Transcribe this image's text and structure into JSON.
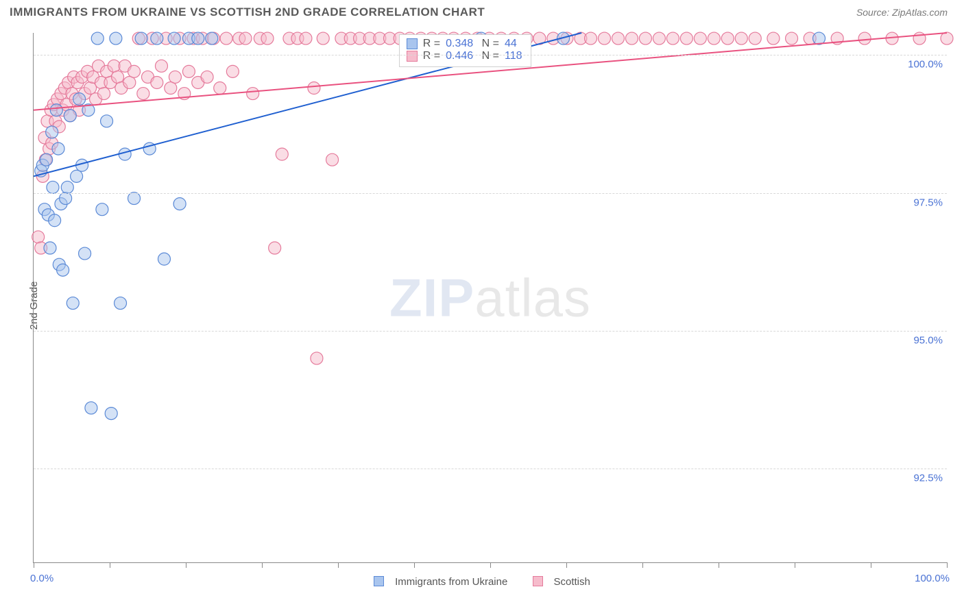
{
  "title": "IMMIGRANTS FROM UKRAINE VS SCOTTISH 2ND GRADE CORRELATION CHART",
  "source_label": "Source: ZipAtlas.com",
  "ylabel": "2nd Grade",
  "watermark": {
    "part1": "ZIP",
    "part2": "atlas"
  },
  "chart": {
    "type": "scatter",
    "background_color": "#ffffff",
    "grid_color": "#d8d8d8",
    "xlim": [
      0,
      100
    ],
    "ylim": [
      90.8,
      100.4
    ],
    "yticks": [
      {
        "value": 100.0,
        "label": "100.0%"
      },
      {
        "value": 97.5,
        "label": "97.5%"
      },
      {
        "value": 95.0,
        "label": "95.0%"
      },
      {
        "value": 92.5,
        "label": "92.5%"
      }
    ],
    "xticks_minor": [
      0,
      8.33,
      16.67,
      25,
      33.33,
      41.67,
      50,
      58.33,
      66.67,
      75,
      83.33,
      91.67,
      100
    ],
    "xaxis": {
      "left_label": "0.0%",
      "right_label": "100.0%"
    },
    "marker_radius": 9,
    "marker_opacity": 0.5,
    "line_width": 2,
    "series": [
      {
        "name": "Immigrants from Ukraine",
        "fill_color": "#a9c5ee",
        "stroke_color": "#5a89d6",
        "line_color": "#1f5fd0",
        "R": "0.348",
        "N": "44",
        "trend": {
          "x1": 0,
          "y1": 97.8,
          "x2": 60,
          "y2": 100.4
        },
        "points": [
          [
            0.8,
            97.9
          ],
          [
            1.0,
            98.0
          ],
          [
            1.2,
            97.2
          ],
          [
            1.4,
            98.1
          ],
          [
            1.6,
            97.1
          ],
          [
            1.8,
            96.5
          ],
          [
            2.0,
            98.6
          ],
          [
            2.1,
            97.6
          ],
          [
            2.3,
            97.0
          ],
          [
            2.5,
            99.0
          ],
          [
            2.7,
            98.3
          ],
          [
            2.8,
            96.2
          ],
          [
            3.0,
            97.3
          ],
          [
            3.2,
            96.1
          ],
          [
            3.5,
            97.4
          ],
          [
            3.7,
            97.6
          ],
          [
            4.0,
            98.9
          ],
          [
            4.3,
            95.5
          ],
          [
            4.7,
            97.8
          ],
          [
            5.0,
            99.2
          ],
          [
            5.3,
            98.0
          ],
          [
            5.6,
            96.4
          ],
          [
            6.0,
            99.0
          ],
          [
            6.3,
            93.6
          ],
          [
            7.0,
            100.3
          ],
          [
            7.5,
            97.2
          ],
          [
            8.0,
            98.8
          ],
          [
            8.5,
            93.5
          ],
          [
            9.0,
            100.3
          ],
          [
            9.5,
            95.5
          ],
          [
            10.0,
            98.2
          ],
          [
            11.0,
            97.4
          ],
          [
            11.8,
            100.3
          ],
          [
            12.7,
            98.3
          ],
          [
            13.5,
            100.3
          ],
          [
            14.3,
            96.3
          ],
          [
            15.4,
            100.3
          ],
          [
            16.0,
            97.3
          ],
          [
            17.0,
            100.3
          ],
          [
            18.0,
            100.3
          ],
          [
            19.5,
            100.3
          ],
          [
            49.0,
            100.3
          ],
          [
            58.0,
            100.3
          ],
          [
            86.0,
            100.3
          ]
        ]
      },
      {
        "name": "Scottish",
        "fill_color": "#f6bccc",
        "stroke_color": "#e57a9b",
        "line_color": "#e9517f",
        "R": "0.446",
        "N": "118",
        "trend": {
          "x1": 0,
          "y1": 99.0,
          "x2": 100,
          "y2": 100.4
        },
        "points": [
          [
            0.5,
            96.7
          ],
          [
            0.8,
            96.5
          ],
          [
            1.0,
            97.8
          ],
          [
            1.2,
            98.5
          ],
          [
            1.3,
            98.1
          ],
          [
            1.5,
            98.8
          ],
          [
            1.7,
            98.3
          ],
          [
            1.9,
            99.0
          ],
          [
            2.0,
            98.4
          ],
          [
            2.2,
            99.1
          ],
          [
            2.4,
            98.8
          ],
          [
            2.6,
            99.2
          ],
          [
            2.8,
            98.7
          ],
          [
            3.0,
            99.3
          ],
          [
            3.2,
            99.0
          ],
          [
            3.4,
            99.4
          ],
          [
            3.6,
            99.1
          ],
          [
            3.8,
            99.5
          ],
          [
            4.0,
            98.9
          ],
          [
            4.2,
            99.3
          ],
          [
            4.4,
            99.6
          ],
          [
            4.6,
            99.2
          ],
          [
            4.8,
            99.5
          ],
          [
            5.0,
            99.0
          ],
          [
            5.3,
            99.6
          ],
          [
            5.6,
            99.3
          ],
          [
            5.9,
            99.7
          ],
          [
            6.2,
            99.4
          ],
          [
            6.5,
            99.6
          ],
          [
            6.8,
            99.2
          ],
          [
            7.1,
            99.8
          ],
          [
            7.4,
            99.5
          ],
          [
            7.7,
            99.3
          ],
          [
            8.0,
            99.7
          ],
          [
            8.4,
            99.5
          ],
          [
            8.8,
            99.8
          ],
          [
            9.2,
            99.6
          ],
          [
            9.6,
            99.4
          ],
          [
            10.0,
            99.8
          ],
          [
            10.5,
            99.5
          ],
          [
            11.0,
            99.7
          ],
          [
            11.5,
            100.3
          ],
          [
            12.0,
            99.3
          ],
          [
            12.5,
            99.6
          ],
          [
            13.0,
            100.3
          ],
          [
            13.5,
            99.5
          ],
          [
            14.0,
            99.8
          ],
          [
            14.5,
            100.3
          ],
          [
            15.0,
            99.4
          ],
          [
            15.5,
            99.6
          ],
          [
            16.0,
            100.3
          ],
          [
            16.5,
            99.3
          ],
          [
            17.0,
            99.7
          ],
          [
            17.5,
            100.3
          ],
          [
            18.0,
            99.5
          ],
          [
            18.5,
            100.3
          ],
          [
            19.0,
            99.6
          ],
          [
            19.7,
            100.3
          ],
          [
            20.4,
            99.4
          ],
          [
            21.1,
            100.3
          ],
          [
            21.8,
            99.7
          ],
          [
            22.5,
            100.3
          ],
          [
            23.2,
            100.3
          ],
          [
            24.0,
            99.3
          ],
          [
            24.8,
            100.3
          ],
          [
            25.6,
            100.3
          ],
          [
            26.4,
            96.5
          ],
          [
            27.2,
            98.2
          ],
          [
            28.0,
            100.3
          ],
          [
            28.9,
            100.3
          ],
          [
            29.8,
            100.3
          ],
          [
            30.7,
            99.4
          ],
          [
            31.0,
            94.5
          ],
          [
            31.7,
            100.3
          ],
          [
            32.7,
            98.1
          ],
          [
            33.7,
            100.3
          ],
          [
            34.7,
            100.3
          ],
          [
            35.7,
            100.3
          ],
          [
            36.8,
            100.3
          ],
          [
            37.9,
            100.3
          ],
          [
            39.0,
            100.3
          ],
          [
            40.1,
            100.3
          ],
          [
            41.2,
            100.3
          ],
          [
            42.4,
            100.3
          ],
          [
            43.6,
            100.3
          ],
          [
            44.8,
            100.3
          ],
          [
            46.0,
            100.3
          ],
          [
            47.3,
            100.3
          ],
          [
            48.6,
            100.3
          ],
          [
            49.9,
            100.3
          ],
          [
            51.2,
            100.3
          ],
          [
            52.6,
            100.3
          ],
          [
            54.0,
            100.3
          ],
          [
            55.4,
            100.3
          ],
          [
            56.9,
            100.3
          ],
          [
            58.4,
            100.3
          ],
          [
            59.9,
            100.3
          ],
          [
            61.0,
            100.3
          ],
          [
            62.5,
            100.3
          ],
          [
            64.0,
            100.3
          ],
          [
            65.5,
            100.3
          ],
          [
            67.0,
            100.3
          ],
          [
            68.5,
            100.3
          ],
          [
            70.0,
            100.3
          ],
          [
            71.5,
            100.3
          ],
          [
            73.0,
            100.3
          ],
          [
            74.5,
            100.3
          ],
          [
            76.0,
            100.3
          ],
          [
            77.5,
            100.3
          ],
          [
            79.0,
            100.3
          ],
          [
            81.0,
            100.3
          ],
          [
            83.0,
            100.3
          ],
          [
            85.0,
            100.3
          ],
          [
            88.0,
            100.3
          ],
          [
            91.0,
            100.3
          ],
          [
            94.0,
            100.3
          ],
          [
            97.0,
            100.3
          ],
          [
            100.0,
            100.3
          ]
        ]
      }
    ]
  },
  "bottom_legend": {
    "s1_label": "Immigrants from Ukraine",
    "s2_label": "Scottish"
  },
  "legend_box": {
    "r_prefix": "R =",
    "n_prefix": "N ="
  }
}
